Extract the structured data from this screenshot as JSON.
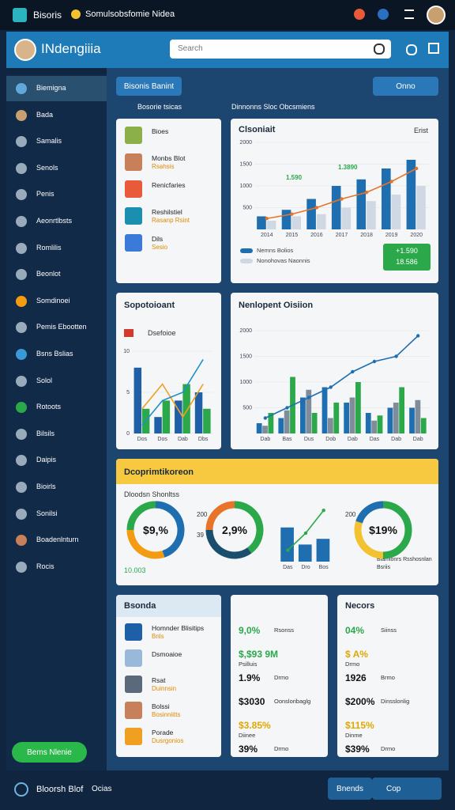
{
  "topbar": {
    "app": "Bisoris",
    "title": "Somulsobsfomie Nidea"
  },
  "header": {
    "title": "INdengiiia",
    "search_placeholder": "Search"
  },
  "sidebar": {
    "items": [
      "Biemigna",
      "Bada",
      "Samalis",
      "Senols",
      "Penis",
      "Aeonrtlbsts",
      "Romlilis",
      "Beonlot",
      "Somdinoei",
      "Pemis Ebootten",
      "Bsns Bslias",
      "Solol",
      "Rotoots",
      "Bilsils",
      "Daipis",
      "Bioirls",
      "Sonilsi",
      "Boadenlnturn",
      "Rocis"
    ],
    "button": "Bems Nlenie"
  },
  "toolbar": {
    "left_button": "Bisonis Banint",
    "right_button": "Onno",
    "left_caption": "Bosorie tsicas",
    "right_caption": "Dinnonns Sloc Obcsmiens"
  },
  "list_card": {
    "items": [
      {
        "title": "Bioes"
      },
      {
        "title": "Monbs Blot",
        "sub": "Rsahsis"
      },
      {
        "title": "Renicfaries"
      },
      {
        "title": "Reshilstiel",
        "sub": "Rasanp Rsint"
      },
      {
        "title": "Dils",
        "sub": "Sesio"
      }
    ]
  },
  "overview_card": {
    "title": "Clsoniait",
    "corner": "Erist",
    "annotations": [
      "1.590",
      "1.3890"
    ],
    "badge": [
      "+1.590",
      "18.586"
    ],
    "chart": {
      "type": "bar",
      "categories": [
        "2014",
        "2015",
        "2016",
        "2017",
        "2018",
        "2019",
        "2020"
      ],
      "ylim": [
        0,
        2000
      ],
      "yticks": [
        500,
        1000,
        1500,
        2000
      ],
      "series": [
        {
          "name": "Nemns Bolios",
          "color": "#1f6fb0",
          "kind": "bar",
          "values": [
            300,
            450,
            700,
            1000,
            1150,
            1400,
            1600
          ]
        },
        {
          "name": "Nonohovas Naonnis",
          "color": "#cfd8e3",
          "kind": "bar",
          "values": [
            200,
            300,
            350,
            500,
            650,
            800,
            1000
          ]
        },
        {
          "color": "#e8742a",
          "kind": "line",
          "values": [
            250,
            350,
            500,
            700,
            850,
            1100,
            1400
          ]
        }
      ]
    }
  },
  "small_card": {
    "title": "Sopotoioant",
    "legend": "Dsefoioe",
    "chart": {
      "type": "bar",
      "categories": [
        "Dos",
        "Dos",
        "Dab",
        "Dbs"
      ],
      "ylim": [
        0,
        10
      ],
      "yticks": [
        0,
        5,
        10
      ],
      "series": [
        {
          "color": "#1f5fa8",
          "kind": "bar",
          "values": [
            8,
            2,
            4,
            5
          ]
        },
        {
          "color": "#2aa84a",
          "kind": "bar",
          "values": [
            3,
            4,
            6,
            3
          ]
        },
        {
          "color": "#f0a020",
          "kind": "line",
          "values": [
            3,
            6,
            2,
            6
          ]
        },
        {
          "color": "#1f8fc8",
          "kind": "line",
          "values": [
            1,
            4,
            5,
            9
          ]
        }
      ]
    }
  },
  "trend_card": {
    "title": "Nenlopent Oisiion",
    "chart": {
      "type": "bar",
      "categories": [
        "Dab",
        "Bas",
        "Dus",
        "Dob",
        "Dab",
        "Das",
        "Dab",
        "Dab"
      ],
      "ylim": [
        0,
        2000
      ],
      "yticks": [
        500,
        1000,
        1500,
        2000
      ],
      "series": [
        {
          "color": "#1f6fb0",
          "kind": "bar",
          "values": [
            200,
            300,
            700,
            900,
            600,
            400,
            500,
            500
          ]
        },
        {
          "color": "#7f8c99",
          "kind": "bar",
          "values": [
            150,
            450,
            850,
            300,
            700,
            250,
            600,
            650
          ]
        },
        {
          "color": "#2aa84a",
          "kind": "bar",
          "values": [
            400,
            1100,
            400,
            600,
            1000,
            350,
            900,
            300
          ]
        },
        {
          "color": "#1f6fb0",
          "kind": "line",
          "values": [
            300,
            500,
            700,
            900,
            1200,
            1400,
            1500,
            1900
          ]
        }
      ]
    }
  },
  "donut_card": {
    "title": "Dcoprimtikoreon",
    "subtitle": "Dloodsn Shonltss",
    "footer_left": "10.003",
    "footer_right": [
      "Biamlonrs Rsshosnlan",
      "Bsriis"
    ],
    "donuts": [
      {
        "label": "$9,%",
        "segments": [
          {
            "value": 45,
            "color": "#1f6fb0"
          },
          {
            "value": 30,
            "color": "#f39c12"
          },
          {
            "value": 25,
            "color": "#2aa84a"
          }
        ]
      },
      {
        "label": "2,9%",
        "side": [
          "200",
          "39"
        ],
        "segments": [
          {
            "value": 40,
            "color": "#2aa84a"
          },
          {
            "value": 35,
            "color": "#1a4e6e"
          },
          {
            "value": 25,
            "color": "#e8742a"
          }
        ]
      },
      {
        "label": "$19%",
        "side": [
          "200"
        ],
        "segments": [
          {
            "value": 50,
            "color": "#2aa84a"
          },
          {
            "value": 30,
            "color": "#f2c230"
          },
          {
            "value": 20,
            "color": "#1f6fb0"
          }
        ]
      }
    ],
    "chart": {
      "type": "bar",
      "categories": [
        "Das",
        "Dro",
        "Bos"
      ],
      "ylim": [
        0,
        10
      ],
      "series": [
        {
          "color": "#1f6fb0",
          "kind": "bar",
          "values": [
            6,
            3,
            4
          ]
        },
        {
          "color": "#2aa84a",
          "kind": "line",
          "values": [
            2,
            5,
            9
          ]
        }
      ]
    }
  },
  "docs_card": {
    "title": "Bsonda",
    "items": [
      {
        "title": "Homnder Blisitips",
        "sub": "Bnls"
      },
      {
        "title": "Dsmoaioe"
      },
      {
        "title": "Rsat",
        "sub": "Duinnsin"
      },
      {
        "title": "Bolssi",
        "sub": "Bosinniitts"
      },
      {
        "title": "Porade",
        "sub": "Dusrgonios"
      }
    ]
  },
  "stats_card": {
    "items": [
      {
        "value": "9,0%",
        "label": "Rsonss",
        "color": "#2aa84a"
      },
      {
        "value": "$,$93 9M",
        "label": "Psilluis",
        "color": "#2aa84a"
      },
      {
        "value": "1.9%",
        "label": "Drmo",
        "color": "#111"
      },
      {
        "value": "$3030",
        "label": "Oonsloribaglg",
        "color": "#111"
      },
      {
        "value": "$3.85%",
        "label": "Diinee",
        "color": "#e0a800"
      },
      {
        "value": "39%",
        "label": "Drmo",
        "color": "#111"
      }
    ]
  },
  "records_card": {
    "title": "Necors",
    "items": [
      {
        "value": "04%",
        "label": "Siinss",
        "color": "#2aa84a"
      },
      {
        "value": "$ A%",
        "label": "Drmo",
        "color": "#e0a800"
      },
      {
        "value": "1926",
        "label": "Brmo",
        "color": "#111"
      },
      {
        "value": "$200%",
        "label": "Dinsslonlig",
        "color": "#111"
      },
      {
        "value": "$115%",
        "label": "Dinme",
        "color": "#e0a800"
      },
      {
        "value": "$39%",
        "label": "Drmo",
        "color": "#111"
      }
    ]
  },
  "footer": {
    "title": "Bloorsh Blof",
    "sub": "Ocias",
    "buttons": [
      "Bnends",
      "Cop"
    ]
  }
}
